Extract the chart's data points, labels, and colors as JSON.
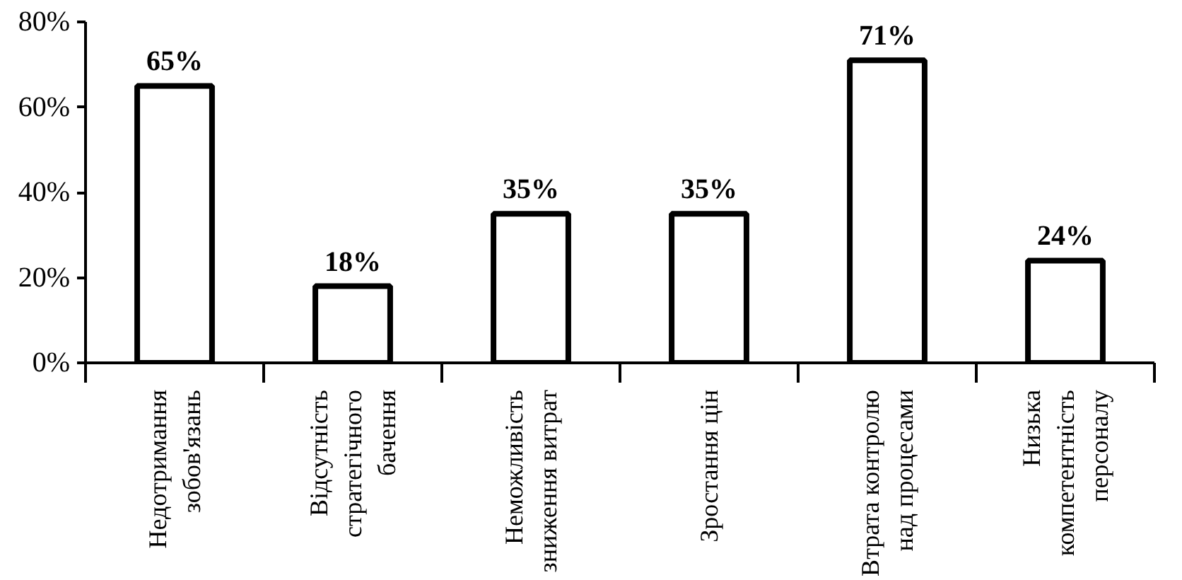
{
  "chart_data": {
    "type": "bar",
    "categories": [
      "Недотримання\nзобов'язань",
      "Відсутність\nстратегічного\nбачення",
      "Неможливість\nзниження витрат",
      "Зростання цін",
      "Втрата контролю\nнад процесами",
      "Низька\nкомпетентність\nперсоналу"
    ],
    "values": [
      65,
      18,
      35,
      35,
      71,
      24
    ],
    "value_labels": [
      "65%",
      "18%",
      "35%",
      "35%",
      "71%",
      "24%"
    ],
    "color": "#ffffff",
    "ylim": [
      0,
      80
    ],
    "yticks": [
      {
        "value": 0,
        "label": "0%"
      },
      {
        "value": 20,
        "label": "20%"
      },
      {
        "value": 40,
        "label": "40%"
      },
      {
        "value": 60,
        "label": "60%"
      },
      {
        "value": 80,
        "label": "80%"
      }
    ],
    "grid": false
  }
}
